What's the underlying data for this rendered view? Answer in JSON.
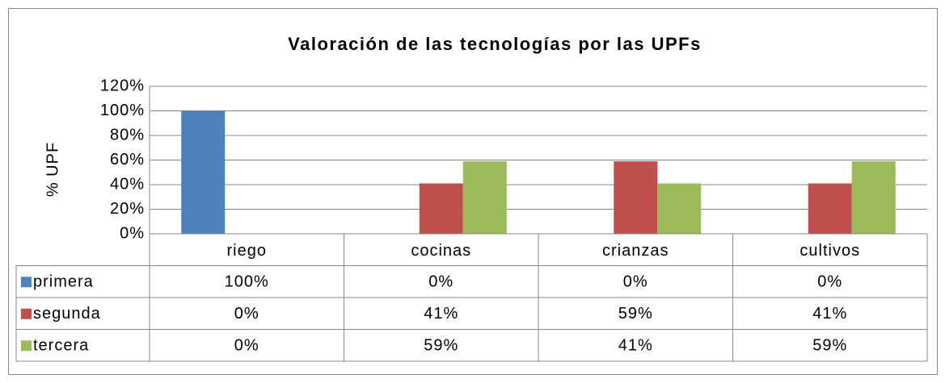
{
  "chart_data": {
    "type": "bar",
    "title": "Valoración de las tecnologías por las UPFs",
    "ylabel": "% UPF",
    "categories": [
      "riego",
      "cocinas",
      "crianzas",
      "cultivos"
    ],
    "series": [
      {
        "name": "primera",
        "color": "#4f81bd",
        "values": [
          100,
          0,
          0,
          0
        ],
        "value_labels": [
          "100%",
          "0%",
          "0%",
          "0%"
        ]
      },
      {
        "name": "segunda",
        "color": "#c0504d",
        "values": [
          0,
          41,
          59,
          41
        ],
        "value_labels": [
          "0%",
          "41%",
          "59%",
          "41%"
        ]
      },
      {
        "name": "tercera",
        "color": "#9bbb59",
        "values": [
          0,
          59,
          41,
          59
        ],
        "value_labels": [
          "0%",
          "59%",
          "41%",
          "59%"
        ]
      }
    ],
    "ylim": [
      0,
      120
    ],
    "yticks": [
      {
        "value": 0,
        "label": "0%"
      },
      {
        "value": 20,
        "label": "20%"
      },
      {
        "value": 40,
        "label": "40%"
      },
      {
        "value": 60,
        "label": "60%"
      },
      {
        "value": 80,
        "label": "80%"
      },
      {
        "value": 100,
        "label": "100%"
      },
      {
        "value": 120,
        "label": "120%"
      }
    ],
    "grid": true
  }
}
